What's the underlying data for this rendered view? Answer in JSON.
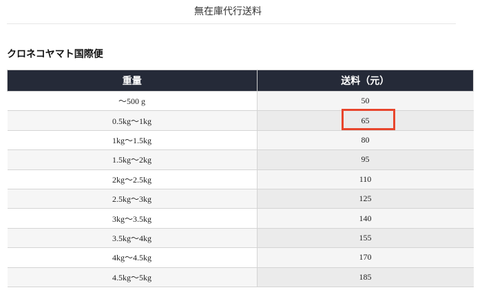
{
  "page_title": "無在庫代行送料",
  "section_title": "クロネコヤマト国際便",
  "table": {
    "headers": [
      "重量",
      "送料（元）"
    ],
    "rows": [
      [
        "～500 g",
        "50"
      ],
      [
        "0.5kg～1kg",
        "65"
      ],
      [
        "1kg～1.5kg",
        "80"
      ],
      [
        "1.5kg～2kg",
        "95"
      ],
      [
        "2kg～2.5kg",
        "110"
      ],
      [
        "2.5kg～3kg",
        "125"
      ],
      [
        "3kg～3.5kg",
        "140"
      ],
      [
        "3.5kg～4kg",
        "155"
      ],
      [
        "4kg～4.5kg",
        "170"
      ],
      [
        "4.5kg～5kg",
        "185"
      ]
    ]
  },
  "highlight_color": "#e8452c",
  "header_color": "#252a38"
}
